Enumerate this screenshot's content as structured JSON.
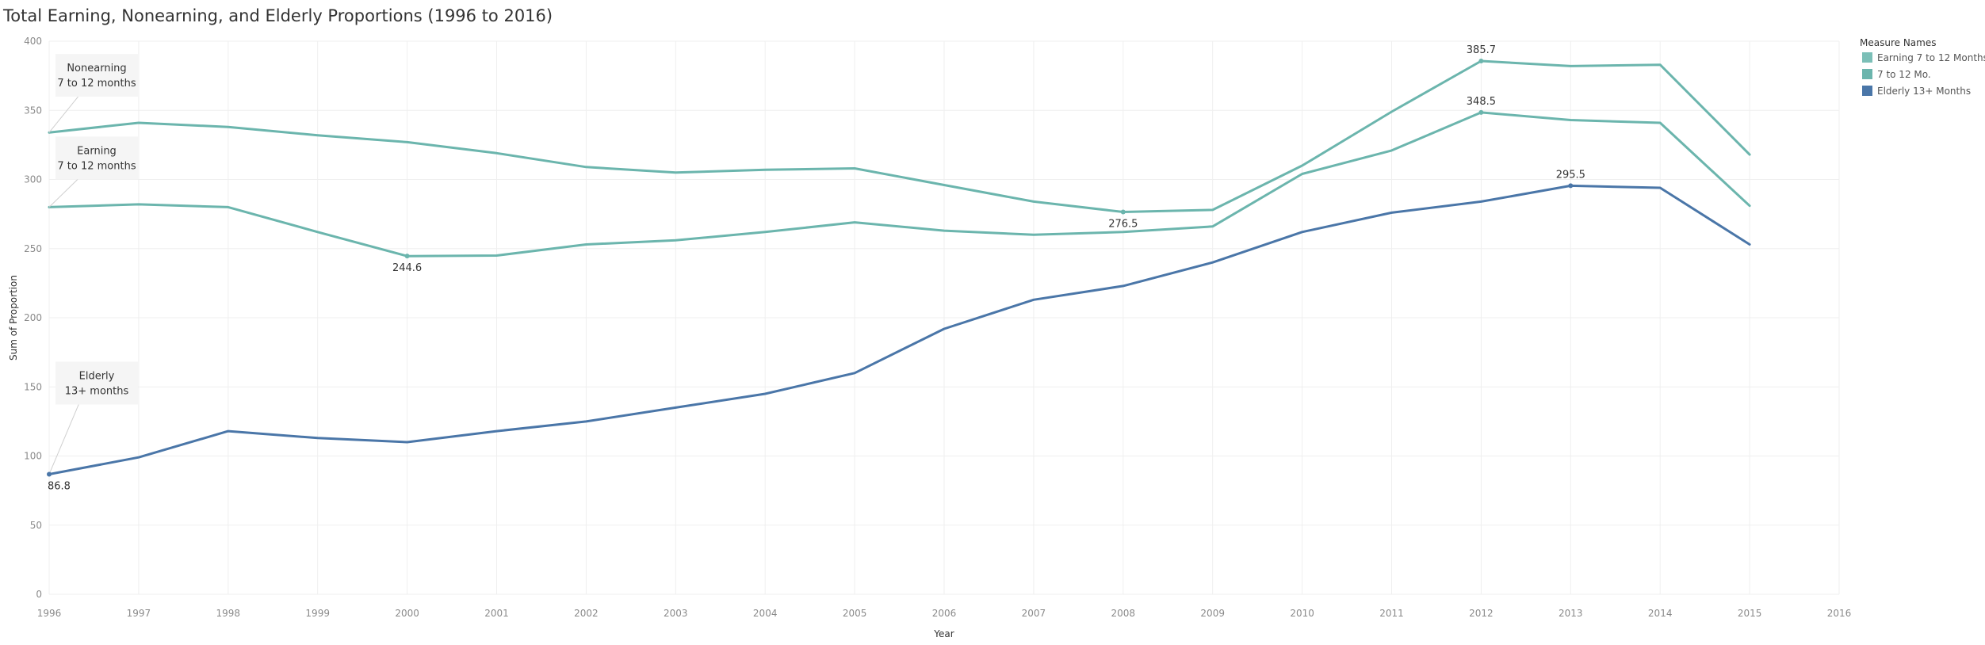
{
  "chart_data": {
    "type": "line",
    "title": "Total Earning, Nonearning, and Elderly Proportions (1996 to 2016)",
    "xlabel": "Year",
    "ylabel": "Sum of Proportion",
    "x_ticks": [
      "1996",
      "1997",
      "1998",
      "1999",
      "2000",
      "2001",
      "2002",
      "2003",
      "2004",
      "2005",
      "2006",
      "2007",
      "2008",
      "2009",
      "2010",
      "2011",
      "2012",
      "2013",
      "2014",
      "2015",
      "2016"
    ],
    "y_ticks": [
      0,
      50,
      100,
      150,
      200,
      250,
      300,
      350,
      400
    ],
    "ylim": [
      0,
      400
    ],
    "xlim": [
      1996,
      2016
    ],
    "grid": true,
    "legend": {
      "title": "Measure Names",
      "placement": "top-right",
      "entries": [
        "Earning 7 to 12 Months",
        "7 to 12 Mo.",
        "Elderly 13+ Months"
      ]
    },
    "series": [
      {
        "name": "7 to 12 Mo.",
        "color": "#6bb5ad",
        "x": [
          1996,
          1997,
          1998,
          1999,
          2000,
          2001,
          2002,
          2003,
          2004,
          2005,
          2006,
          2007,
          2008,
          2009,
          2010,
          2011,
          2012,
          2013,
          2014,
          2015
        ],
        "values": [
          334,
          341,
          338,
          332,
          327,
          319,
          309,
          305,
          307,
          308,
          296,
          284,
          276.5,
          278,
          310,
          349,
          385.7,
          382,
          383,
          318
        ]
      },
      {
        "name": "Earning 7 to 12 Months",
        "color": "#6bb5ad",
        "x": [
          1996,
          1997,
          1998,
          1999,
          2000,
          2001,
          2002,
          2003,
          2004,
          2005,
          2006,
          2007,
          2008,
          2009,
          2010,
          2011,
          2012,
          2013,
          2014,
          2015
        ],
        "values": [
          280,
          282,
          280,
          262,
          244.6,
          245,
          253,
          256,
          262,
          269,
          263,
          260,
          262,
          266,
          304,
          321,
          348.5,
          343,
          341,
          281
        ]
      },
      {
        "name": "Elderly 13+ Months",
        "color": "#4a76a8",
        "x": [
          1996,
          1997,
          1998,
          1999,
          2000,
          2001,
          2002,
          2003,
          2004,
          2005,
          2006,
          2007,
          2008,
          2009,
          2010,
          2011,
          2012,
          2013,
          2014,
          2015
        ],
        "values": [
          86.8,
          99,
          118,
          113,
          110,
          118,
          125,
          135,
          145,
          160,
          192,
          213,
          223,
          240,
          262,
          276,
          284,
          295.5,
          294,
          253
        ]
      }
    ],
    "data_labels": [
      {
        "series": 0,
        "index": 16,
        "text": "385.7",
        "position": "above"
      },
      {
        "series": 0,
        "index": 12,
        "text": "276.5",
        "position": "below"
      },
      {
        "series": 1,
        "index": 16,
        "text": "348.5",
        "position": "above"
      },
      {
        "series": 1,
        "index": 4,
        "text": "244.6",
        "position": "below"
      },
      {
        "series": 2,
        "index": 17,
        "text": "295.5",
        "position": "above"
      },
      {
        "series": 2,
        "index": 0,
        "text": "86.8",
        "position": "below"
      }
    ],
    "annotations": [
      {
        "series": 0,
        "index": 0,
        "lines": [
          "Nonearning",
          "7 to 12 months"
        ]
      },
      {
        "series": 1,
        "index": 0,
        "lines": [
          "Earning",
          "7 to 12 months"
        ]
      },
      {
        "series": 2,
        "index": 0,
        "lines": [
          "Elderly",
          "13+ months"
        ]
      }
    ],
    "colors": {
      "legend_swatch_1": "#7bbfb7",
      "legend_swatch_2": "#6bb5ad",
      "legend_swatch_3": "#4a76a8",
      "grid": "#efefef",
      "annotation_box": "#f5f5f5"
    }
  }
}
